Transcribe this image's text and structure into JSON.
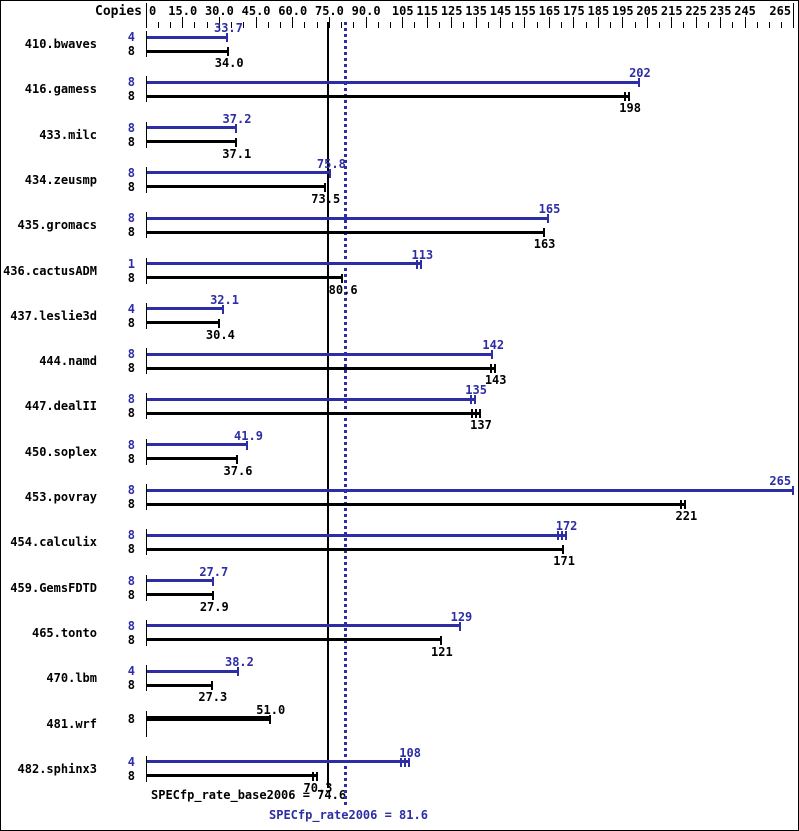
{
  "chart_data": {
    "type": "bar",
    "orientation": "horizontal",
    "copies_header": "Copies",
    "colors": {
      "peak": "#2d2da5",
      "base": "#000000",
      "background": "#ffffff"
    },
    "x_axis": {
      "range": [
        0,
        265
      ],
      "minor_tick_step": 5,
      "tick_values": [
        0,
        15,
        30,
        45,
        60,
        75,
        90,
        105,
        115,
        125,
        135,
        145,
        155,
        165,
        175,
        185,
        195,
        205,
        215,
        225,
        235,
        245,
        265
      ],
      "tick_labels": [
        "0",
        "15.0",
        "30.0",
        "45.0",
        "60.0",
        "75.0",
        "90.0",
        "105",
        "115",
        "125",
        "135",
        "145",
        "155",
        "165",
        "175",
        "185",
        "195",
        "205",
        "215",
        "225",
        "235",
        "245",
        "265"
      ]
    },
    "reference_lines": [
      {
        "name": "base",
        "value": 74.6,
        "style": "solid",
        "color": "#000000",
        "label": "SPECfp_rate_base2006 = 74.6"
      },
      {
        "name": "peak",
        "value": 81.6,
        "style": "dotted",
        "color": "#2d2da5",
        "label": "SPECfp_rate2006 = 81.6"
      }
    ],
    "benchmarks": [
      {
        "name": "410.bwaves",
        "peak": {
          "copies": 4,
          "value": 33.7,
          "label": "33.7",
          "marks": 1
        },
        "base": {
          "copies": 8,
          "value": 34.0,
          "label": "34.0",
          "marks": 1
        }
      },
      {
        "name": "416.gamess",
        "peak": {
          "copies": 8,
          "value": 202,
          "label": "202",
          "marks": 1
        },
        "base": {
          "copies": 8,
          "value": 198,
          "label": "198",
          "marks": 2
        }
      },
      {
        "name": "433.milc",
        "peak": {
          "copies": 8,
          "value": 37.2,
          "label": "37.2",
          "marks": 1
        },
        "base": {
          "copies": 8,
          "value": 37.1,
          "label": "37.1",
          "marks": 1
        }
      },
      {
        "name": "434.zeusmp",
        "peak": {
          "copies": 8,
          "value": 75.8,
          "label": "75.8",
          "marks": 1
        },
        "base": {
          "copies": 8,
          "value": 73.5,
          "label": "73.5",
          "marks": 1
        }
      },
      {
        "name": "435.gromacs",
        "peak": {
          "copies": 8,
          "value": 165,
          "label": "165",
          "marks": 1
        },
        "base": {
          "copies": 8,
          "value": 163,
          "label": "163",
          "marks": 1
        }
      },
      {
        "name": "436.cactusADM",
        "peak": {
          "copies": 1,
          "value": 113,
          "label": "113",
          "marks": 2
        },
        "base": {
          "copies": 8,
          "value": 80.6,
          "label": "80.6",
          "marks": 1
        }
      },
      {
        "name": "437.leslie3d",
        "peak": {
          "copies": 4,
          "value": 32.1,
          "label": "32.1",
          "marks": 1
        },
        "base": {
          "copies": 8,
          "value": 30.4,
          "label": "30.4",
          "marks": 1
        }
      },
      {
        "name": "444.namd",
        "peak": {
          "copies": 8,
          "value": 142,
          "label": "142",
          "marks": 1
        },
        "base": {
          "copies": 8,
          "value": 143,
          "label": "143",
          "marks": 2
        }
      },
      {
        "name": "447.dealII",
        "peak": {
          "copies": 8,
          "value": 135,
          "label": "135",
          "marks": 2
        },
        "base": {
          "copies": 8,
          "value": 137,
          "label": "137",
          "marks": 3
        }
      },
      {
        "name": "450.soplex",
        "peak": {
          "copies": 8,
          "value": 41.9,
          "label": "41.9",
          "marks": 1
        },
        "base": {
          "copies": 8,
          "value": 37.6,
          "label": "37.6",
          "marks": 1
        }
      },
      {
        "name": "453.povray",
        "peak": {
          "copies": 8,
          "value": 265,
          "label": "265",
          "marks": 1
        },
        "base": {
          "copies": 8,
          "value": 221,
          "label": "221",
          "marks": 2
        }
      },
      {
        "name": "454.calculix",
        "peak": {
          "copies": 8,
          "value": 172,
          "label": "172",
          "marks": 3
        },
        "base": {
          "copies": 8,
          "value": 171,
          "label": "171",
          "marks": 1
        }
      },
      {
        "name": "459.GemsFDTD",
        "peak": {
          "copies": 8,
          "value": 27.7,
          "label": "27.7",
          "marks": 1
        },
        "base": {
          "copies": 8,
          "value": 27.9,
          "label": "27.9",
          "marks": 1
        }
      },
      {
        "name": "465.tonto",
        "peak": {
          "copies": 8,
          "value": 129,
          "label": "129",
          "marks": 1
        },
        "base": {
          "copies": 8,
          "value": 121,
          "label": "121",
          "marks": 1
        }
      },
      {
        "name": "470.lbm",
        "peak": {
          "copies": 4,
          "value": 38.2,
          "label": "38.2",
          "marks": 1
        },
        "base": {
          "copies": 8,
          "value": 27.3,
          "label": "27.3",
          "marks": 1
        }
      },
      {
        "name": "481.wrf",
        "base": {
          "copies": 8,
          "value": 51.0,
          "label": "51.0",
          "marks": 1,
          "thick": true
        }
      },
      {
        "name": "482.sphinx3",
        "peak": {
          "copies": 4,
          "value": 108,
          "label": "108",
          "marks": 3
        },
        "base": {
          "copies": 8,
          "value": 70.3,
          "label": "70.3",
          "marks": 2
        }
      }
    ]
  }
}
